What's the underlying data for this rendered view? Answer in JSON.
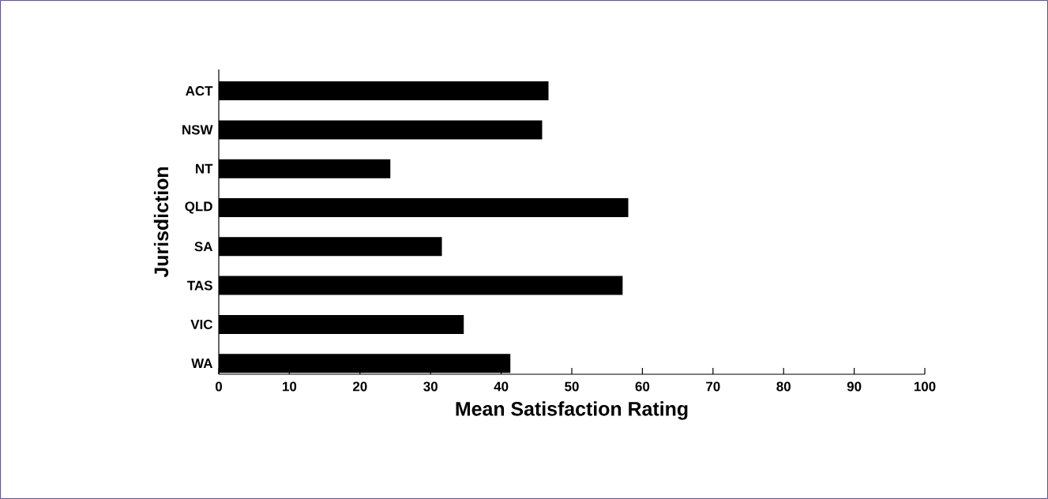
{
  "chart_data": {
    "type": "bar",
    "orientation": "horizontal",
    "xlabel": "Mean Satisfaction Rating",
    "ylabel": "Jurisdiction",
    "categories": [
      "ACT",
      "NSW",
      "NT",
      "QLD",
      "SA",
      "TAS",
      "VIC",
      "WA"
    ],
    "values": [
      46.7,
      45.8,
      24.3,
      58.0,
      31.6,
      57.2,
      34.7,
      41.3
    ],
    "color": "#000000",
    "xlim": [
      0,
      100
    ],
    "xticks": [
      0,
      10,
      20,
      30,
      40,
      50,
      60,
      70,
      80,
      90,
      100
    ]
  }
}
